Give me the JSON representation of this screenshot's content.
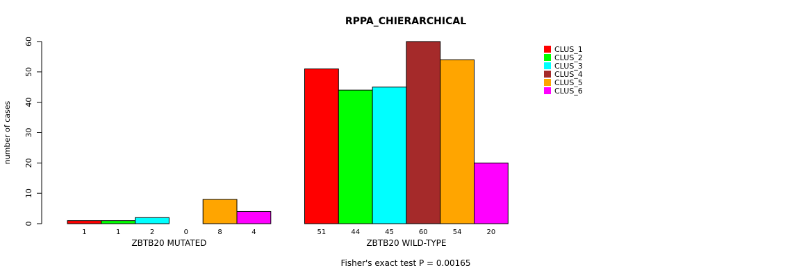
{
  "chart_data": {
    "type": "bar",
    "title": "RPPA_CHIERARCHICAL",
    "ylabel": "number of cases",
    "ylim": [
      0,
      60
    ],
    "yticks": [
      0,
      10,
      20,
      30,
      40,
      50,
      60
    ],
    "categories": [
      "ZBTB20 MUTATED",
      "ZBTB20 WILD-TYPE"
    ],
    "series": [
      {
        "name": "CLUS_1",
        "color": "#ff0000",
        "values": [
          1,
          51
        ]
      },
      {
        "name": "CLUS_2",
        "color": "#00ff00",
        "values": [
          1,
          44
        ]
      },
      {
        "name": "CLUS_3",
        "color": "#00ffff",
        "values": [
          2,
          45
        ]
      },
      {
        "name": "CLUS_4",
        "color": "#a52a2a",
        "values": [
          0,
          60
        ]
      },
      {
        "name": "CLUS_5",
        "color": "#ffa500",
        "values": [
          8,
          54
        ]
      },
      {
        "name": "CLUS_6",
        "color": "#ff00ff",
        "values": [
          4,
          20
        ]
      }
    ],
    "footnote": "Fisher's exact test P = 0.00165",
    "legend_position": "top-right",
    "grid": false
  }
}
